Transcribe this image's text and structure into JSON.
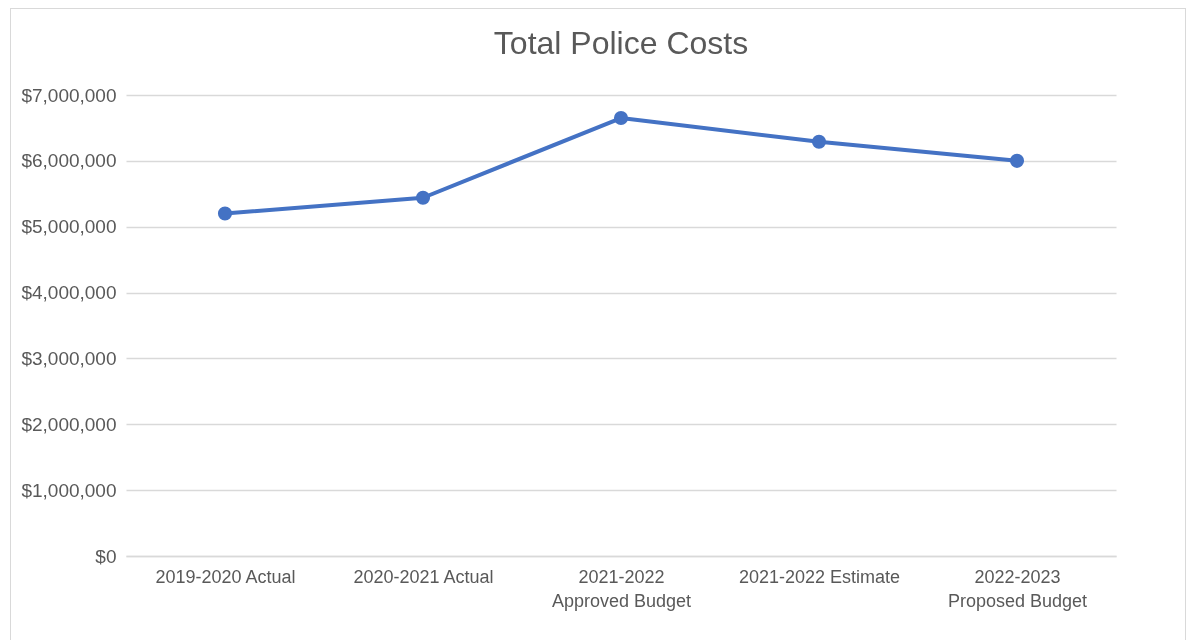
{
  "chart_data": {
    "type": "line",
    "title": "Total Police Costs",
    "categories": [
      "2019-2020 Actual",
      "2020-2021 Actual",
      "2021-2022 Approved Budget",
      "2021-2022 Estimate",
      "2022-2023 Proposed Budget"
    ],
    "series": [
      {
        "color": "#4472c4",
        "values": [
          5200000,
          5440000,
          6650000,
          6290000,
          6000000
        ]
      }
    ],
    "ylim": [
      0,
      7000000
    ],
    "yticks": [
      {
        "value": 0,
        "label": "$0"
      },
      {
        "value": 1000000,
        "label": "$1,000,000"
      },
      {
        "value": 2000000,
        "label": "$2,000,000"
      },
      {
        "value": 3000000,
        "label": "$3,000,000"
      },
      {
        "value": 4000000,
        "label": "$4,000,000"
      },
      {
        "value": 5000000,
        "label": "$5,000,000"
      },
      {
        "value": 6000000,
        "label": "$6,000,000"
      },
      {
        "value": 7000000,
        "label": "$7,000,000"
      }
    ],
    "grid": "y",
    "legend": false,
    "marker": "circle",
    "line_style": "solid"
  }
}
